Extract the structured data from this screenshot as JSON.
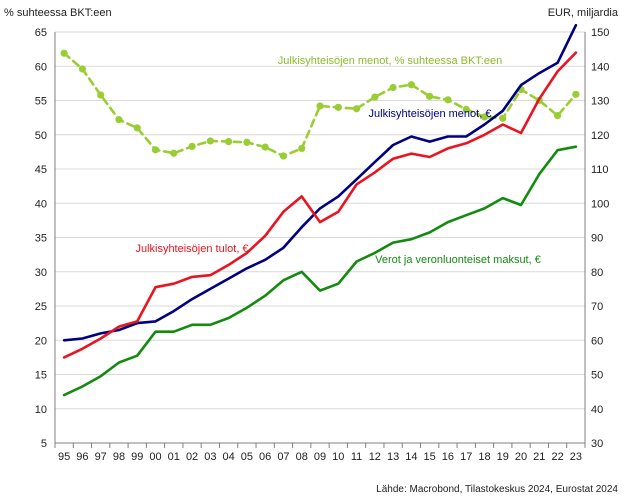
{
  "chart_data": {
    "type": "line",
    "left_axis_title": "% suhteessa BKT:een",
    "right_axis_title": "EUR, miljardia",
    "source": "Lähde: Macrobond, Tilastokeskus 2024, Eurostat 2024",
    "x": [
      "95",
      "96",
      "97",
      "98",
      "99",
      "00",
      "01",
      "02",
      "03",
      "04",
      "05",
      "06",
      "07",
      "08",
      "09",
      "10",
      "11",
      "12",
      "13",
      "14",
      "15",
      "16",
      "17",
      "18",
      "19",
      "20",
      "21",
      "22",
      "23"
    ],
    "y_left": {
      "min": 5,
      "max": 65,
      "step": 5
    },
    "y_right": {
      "min": 30,
      "max": 150,
      "step": 10
    },
    "grid": "horizontal",
    "series": [
      {
        "name": "Julkisyhteisöjen menot, % suhteessa BKT:een",
        "axis": "left",
        "style": "dashed-dots",
        "color": "#9acd32",
        "values": [
          61.9,
          59.6,
          55.8,
          52.2,
          51.0,
          47.8,
          47.3,
          48.3,
          49.1,
          49.0,
          48.9,
          48.2,
          46.9,
          48.0,
          54.2,
          54.0,
          53.8,
          55.5,
          56.9,
          57.3,
          55.6,
          55.1,
          53.7,
          52.6,
          52.4,
          56.6,
          55.0,
          52.8,
          55.9
        ]
      },
      {
        "name": "Julkisyhteisöjen menot, €",
        "axis": "right",
        "style": "solid",
        "color": "#000080",
        "values": [
          60.0,
          60.5,
          62.0,
          63.0,
          65.0,
          65.5,
          68.5,
          72.0,
          75.0,
          78.0,
          81.0,
          83.5,
          87.0,
          93.0,
          98.5,
          102.0,
          107.0,
          112.0,
          117.0,
          119.5,
          118.0,
          119.5,
          119.5,
          123.0,
          127.0,
          134.5,
          138.0,
          141.0,
          152.0
        ]
      },
      {
        "name": "Julkisyhteisöjen tulot, €",
        "axis": "right",
        "style": "solid",
        "color": "#e8141f",
        "values": [
          55.0,
          57.5,
          60.5,
          64.0,
          65.5,
          75.5,
          76.5,
          78.5,
          79.0,
          82.0,
          85.5,
          90.5,
          97.5,
          102.0,
          94.5,
          97.5,
          105.5,
          109.0,
          113.0,
          114.5,
          113.5,
          116.0,
          117.5,
          120.0,
          123.0,
          120.5,
          130.5,
          138.5,
          144.0
        ]
      },
      {
        "name": "Verot ja veronluonteiset maksut, €",
        "axis": "right",
        "style": "solid",
        "color": "#138b0f",
        "values": [
          44.0,
          46.5,
          49.5,
          53.5,
          55.5,
          62.5,
          62.5,
          64.5,
          64.5,
          66.5,
          69.5,
          73.0,
          77.5,
          80.0,
          74.5,
          76.5,
          83.0,
          85.5,
          88.5,
          89.5,
          91.5,
          94.5,
          96.5,
          98.5,
          101.5,
          99.5,
          108.5,
          115.5,
          116.5
        ]
      }
    ]
  }
}
